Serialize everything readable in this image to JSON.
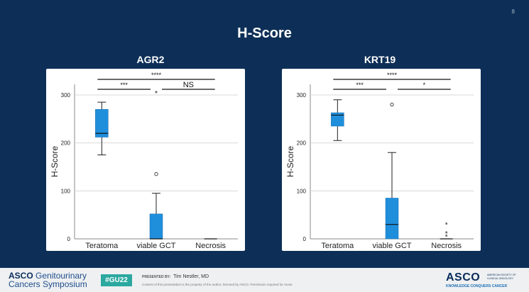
{
  "slide_number": "8",
  "title": "H-Score",
  "footer": {
    "asco_left_line1_a": "ASCO",
    "asco_left_line1_b": " Genitourinary",
    "asco_left_line2": "Cancers Symposium",
    "hashtag": "#GU22",
    "presented_by_label": "PRESENTED BY:",
    "presenter": "Tim Nestler, MD",
    "disclaimer": "Content of this presentation is the property of the author, licensed by ASCO. Permission required for reuse.",
    "asco_right_logo": "ASCO",
    "asco_right_society": "AMERICAN SOCIETY OF CLINICAL ONCOLOGY",
    "asco_right_tagline": "KNOWLEDGE CONQUERS CANCER"
  },
  "colors": {
    "box": "#1f8fdc",
    "background": "#0d2f57"
  },
  "chart_data": [
    {
      "type": "box",
      "title": "AGR2",
      "ylabel": "H-Score",
      "categories": [
        "Teratoma",
        "viable GCT",
        "Necrosis"
      ],
      "yticks": [
        0,
        100,
        200,
        300
      ],
      "ylim": [
        0,
        320
      ],
      "grid": true,
      "boxes": [
        {
          "min": 175,
          "q1": 212,
          "median": 220,
          "q3": 270,
          "max": 285,
          "outliers": []
        },
        {
          "min": 0,
          "q1": 0,
          "median": 0,
          "q3": 52,
          "max": 95,
          "outliers": [
            135
          ],
          "extremes": []
        },
        {
          "min": 0,
          "q1": 0,
          "median": 0,
          "q3": 0,
          "max": 0,
          "outliers": []
        }
      ],
      "significance": [
        {
          "from": 0,
          "to": 2,
          "label": "****",
          "level": 3
        },
        {
          "from": 0,
          "to": 1,
          "label": "***",
          "level": 2
        },
        {
          "from": 1,
          "to": 2,
          "label": "NS",
          "level": 2
        }
      ],
      "annotations": [
        {
          "category": 1,
          "y": 303,
          "label": "*"
        }
      ]
    },
    {
      "type": "box",
      "title": "KRT19",
      "ylabel": "H-Score",
      "categories": [
        "Teratoma",
        "viable GCT",
        "Necrosis"
      ],
      "yticks": [
        0,
        100,
        200,
        300
      ],
      "ylim": [
        0,
        320
      ],
      "grid": true,
      "boxes": [
        {
          "min": 205,
          "q1": 235,
          "median": 258,
          "q3": 263,
          "max": 290,
          "outliers": []
        },
        {
          "min": 0,
          "q1": 0,
          "median": 30,
          "q3": 85,
          "max": 180,
          "outliers": [
            280
          ],
          "extremes": []
        },
        {
          "min": 0,
          "q1": 0,
          "median": 0,
          "q3": 0,
          "max": 0,
          "outliers": [],
          "extremes": [
            30,
            12,
            5
          ]
        }
      ],
      "significance": [
        {
          "from": 0,
          "to": 2,
          "label": "****",
          "level": 3
        },
        {
          "from": 0,
          "to": 1,
          "label": "***",
          "level": 2
        },
        {
          "from": 1,
          "to": 2,
          "label": "*",
          "level": 2
        }
      ],
      "annotations": []
    }
  ]
}
